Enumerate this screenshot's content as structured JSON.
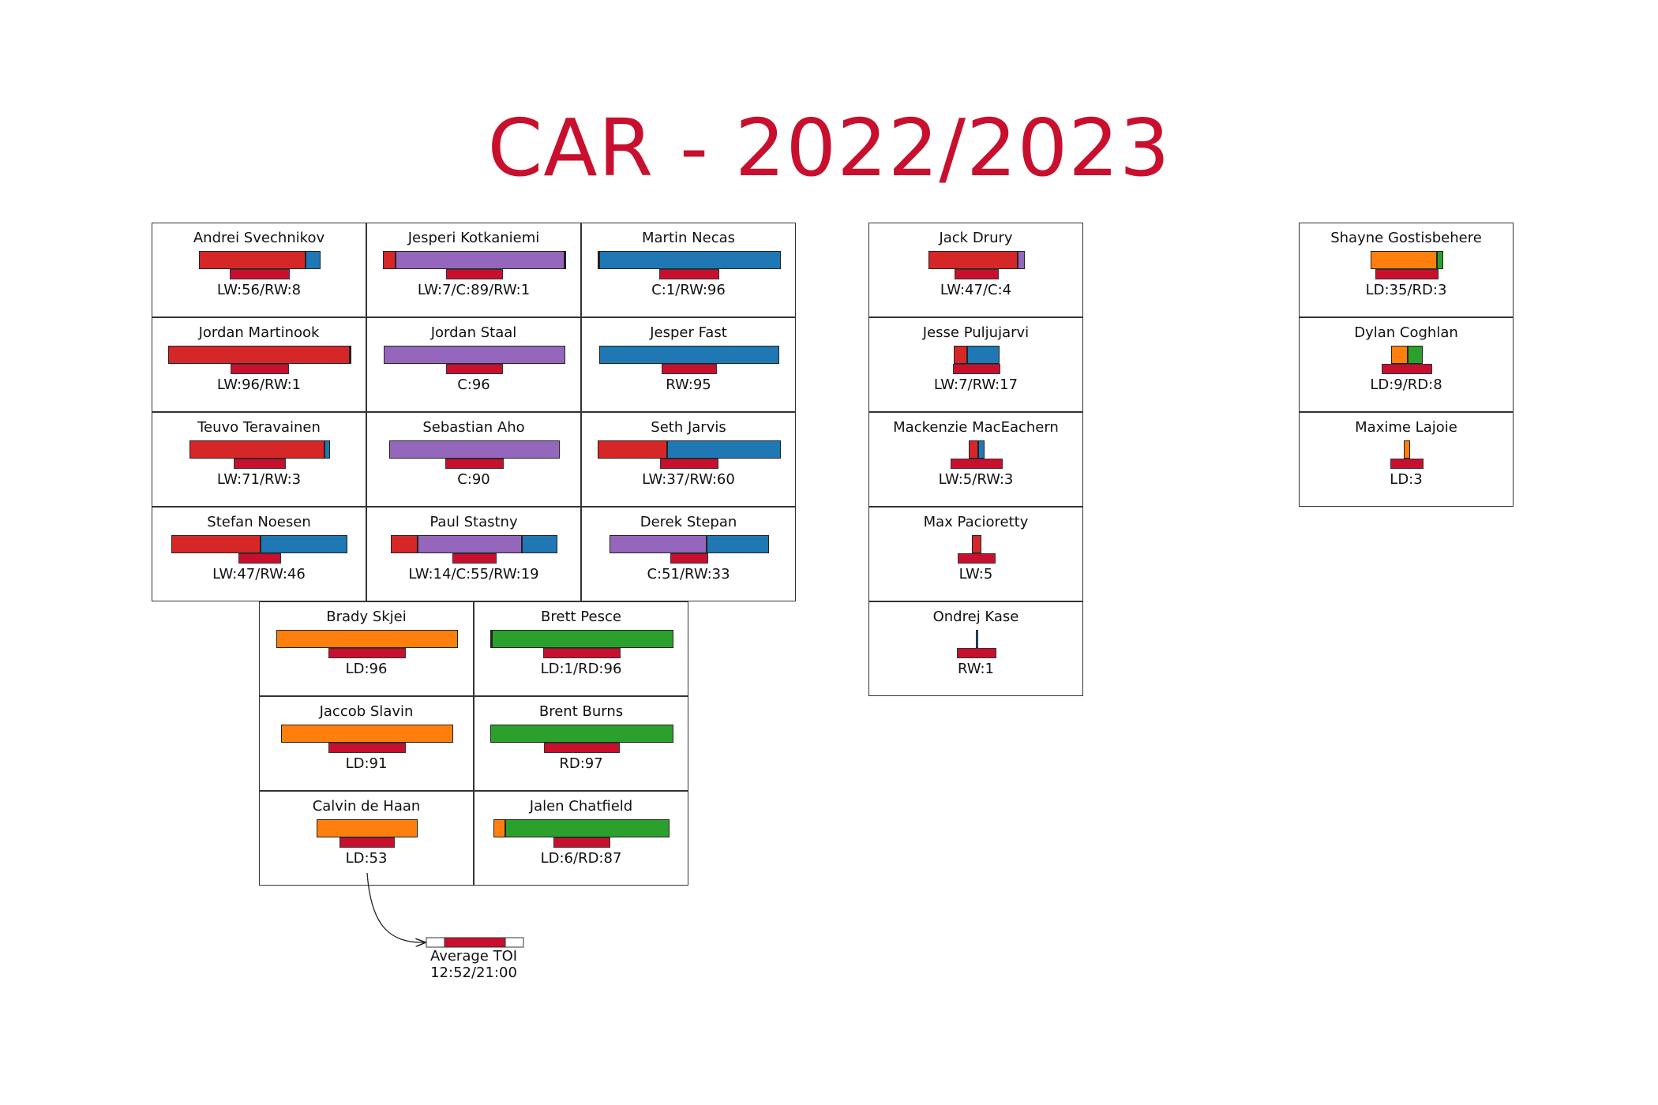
{
  "title": "CAR - 2022/2023",
  "colors": {
    "title": "#c8102e",
    "LW": "#d62728",
    "C": "#9467bd",
    "RW": "#1f77b4",
    "LD": "#ff7f0e",
    "RD": "#2ca02c",
    "toi": "#c8102e"
  },
  "chart_data": {
    "type": "bar",
    "toi_range": [
      "12:52",
      "21:00"
    ],
    "players": [
      {
        "name": "Andrei Svechnikov",
        "label": "LW:56/RW:8",
        "positions": [
          {
            "pos": "LW",
            "games": 56
          },
          {
            "pos": "RW",
            "games": 8
          }
        ],
        "toi_frac": 0.66
      },
      {
        "name": "Jesperi Kotkaniemi",
        "label": "LW:7/C:89/RW:1",
        "positions": [
          {
            "pos": "LW",
            "games": 7
          },
          {
            "pos": "C",
            "games": 89
          },
          {
            "pos": "RW",
            "games": 1
          }
        ],
        "toi_frac": 0.62
      },
      {
        "name": "Martin Necas",
        "label": "C:1/RW:96",
        "positions": [
          {
            "pos": "C",
            "games": 1
          },
          {
            "pos": "RW",
            "games": 96
          }
        ],
        "toi_frac": 0.66
      },
      {
        "name": "Jordan Martinook",
        "label": "LW:96/RW:1",
        "positions": [
          {
            "pos": "LW",
            "games": 96
          },
          {
            "pos": "RW",
            "games": 1
          }
        ],
        "toi_frac": 0.64
      },
      {
        "name": "Jordan Staal",
        "label": "C:96",
        "positions": [
          {
            "pos": "C",
            "games": 96
          }
        ],
        "toi_frac": 0.62
      },
      {
        "name": "Jesper Fast",
        "label": "RW:95",
        "positions": [
          {
            "pos": "RW",
            "games": 95
          }
        ],
        "toi_frac": 0.61
      },
      {
        "name": "Teuvo Teravainen",
        "label": "LW:71/RW:3",
        "positions": [
          {
            "pos": "LW",
            "games": 71
          },
          {
            "pos": "RW",
            "games": 3
          }
        ],
        "toi_frac": 0.58
      },
      {
        "name": "Sebastian Aho",
        "label": "C:90",
        "positions": [
          {
            "pos": "C",
            "games": 90
          }
        ],
        "toi_frac": 0.64
      },
      {
        "name": "Seth Jarvis",
        "label": "LW:37/RW:60",
        "positions": [
          {
            "pos": "LW",
            "games": 37
          },
          {
            "pos": "RW",
            "games": 60
          }
        ],
        "toi_frac": 0.64
      },
      {
        "name": "Stefan Noesen",
        "label": "LW:47/RW:46",
        "positions": [
          {
            "pos": "LW",
            "games": 47
          },
          {
            "pos": "RW",
            "games": 46
          }
        ],
        "toi_frac": 0.47
      },
      {
        "name": "Paul Stastny",
        "label": "LW:14/C:55/RW:19",
        "positions": [
          {
            "pos": "LW",
            "games": 14
          },
          {
            "pos": "C",
            "games": 55
          },
          {
            "pos": "RW",
            "games": 19
          }
        ],
        "toi_frac": 0.48
      },
      {
        "name": "Derek Stepan",
        "label": "C:51/RW:33",
        "positions": [
          {
            "pos": "C",
            "games": 51
          },
          {
            "pos": "RW",
            "games": 33
          }
        ],
        "toi_frac": 0.41
      },
      {
        "name": "Brady Skjei",
        "label": "LD:96",
        "positions": [
          {
            "pos": "LD",
            "games": 96
          }
        ],
        "toi_frac": 0.86
      },
      {
        "name": "Brett Pesce",
        "label": "LD:1/RD:96",
        "positions": [
          {
            "pos": "LD",
            "games": 1
          },
          {
            "pos": "RD",
            "games": 96
          }
        ],
        "toi_frac": 0.86
      },
      {
        "name": "Jaccob Slavin",
        "label": "LD:91",
        "positions": [
          {
            "pos": "LD",
            "games": 91
          }
        ],
        "toi_frac": 0.86
      },
      {
        "name": "Brent Burns",
        "label": "RD:97",
        "positions": [
          {
            "pos": "RD",
            "games": 97
          }
        ],
        "toi_frac": 0.83
      },
      {
        "name": "Calvin de Haan",
        "label": "LD:53",
        "positions": [
          {
            "pos": "LD",
            "games": 53
          }
        ],
        "toi_frac": 0.61
      },
      {
        "name": "Jalen Chatfield",
        "label": "LD:6/RD:87",
        "positions": [
          {
            "pos": "LD",
            "games": 6
          },
          {
            "pos": "RD",
            "games": 87
          }
        ],
        "toi_frac": 0.63
      },
      {
        "name": "Jack Drury",
        "label": "LW:47/C:4",
        "positions": [
          {
            "pos": "LW",
            "games": 47
          },
          {
            "pos": "C",
            "games": 4
          }
        ],
        "toi_frac": 0.48
      },
      {
        "name": "Jesse Puljujarvi",
        "label": "LW:7/RW:17",
        "positions": [
          {
            "pos": "LW",
            "games": 7
          },
          {
            "pos": "RW",
            "games": 17
          }
        ],
        "toi_frac": 0.53
      },
      {
        "name": "Mackenzie MacEachern",
        "label": "LW:5/RW:3",
        "positions": [
          {
            "pos": "LW",
            "games": 5
          },
          {
            "pos": "RW",
            "games": 3
          }
        ],
        "toi_frac": 0.57
      },
      {
        "name": "Max Pacioretty",
        "label": "LW:5",
        "positions": [
          {
            "pos": "LW",
            "games": 5
          }
        ],
        "toi_frac": 0.42
      },
      {
        "name": "Ondrej Kase",
        "label": "RW:1",
        "positions": [
          {
            "pos": "RW",
            "games": 1
          }
        ],
        "toi_frac": 0.44
      },
      {
        "name": "Shayne Gostisbehere",
        "label": "LD:35/RD:3",
        "positions": [
          {
            "pos": "LD",
            "games": 35
          },
          {
            "pos": "RD",
            "games": 3
          }
        ],
        "toi_frac": 0.7
      },
      {
        "name": "Dylan Coghlan",
        "label": "LD:9/RD:8",
        "positions": [
          {
            "pos": "LD",
            "games": 9
          },
          {
            "pos": "RD",
            "games": 8
          }
        ],
        "toi_frac": 0.55
      },
      {
        "name": "Maxime Lajoie",
        "label": "LD:3",
        "positions": [
          {
            "pos": "LD",
            "games": 3
          }
        ],
        "toi_frac": 0.36
      }
    ]
  },
  "legend": {
    "label": "Average TOI",
    "range_text": "12:52/21:00"
  }
}
